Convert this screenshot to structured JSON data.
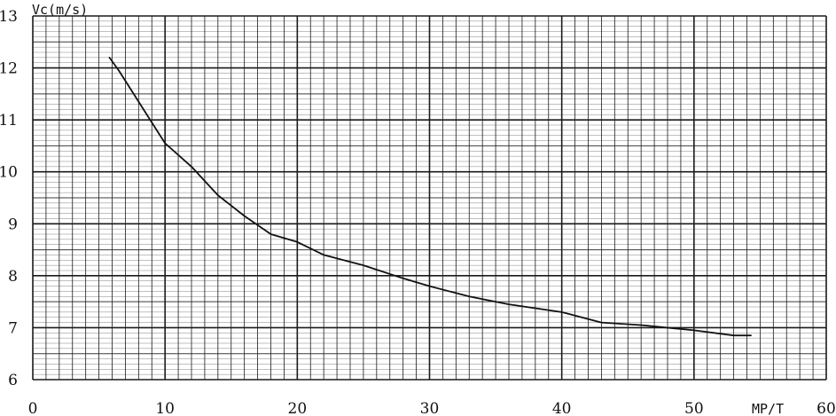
{
  "chart_data": {
    "type": "line",
    "ylabel": "Vc(m/s)",
    "xlabel": "MP/T",
    "xlim": [
      0,
      60
    ],
    "ylim": [
      6,
      13
    ],
    "x_ticks": [
      0,
      10,
      20,
      30,
      40,
      50,
      60
    ],
    "x_tick_labels": [
      "0",
      "10",
      "20",
      "30",
      "40",
      "50",
      "60"
    ],
    "y_ticks": [
      6,
      7,
      8,
      9,
      10,
      11,
      12,
      13
    ],
    "y_tick_labels": [
      "6",
      "7",
      "8",
      "9",
      "10",
      "11",
      "12",
      "13"
    ],
    "grid": true,
    "legend": "none",
    "colors": {
      "grid": "#1a1a1a",
      "line": "#111111",
      "background": "#ffffff"
    },
    "series": [
      {
        "x": [
          5.8,
          6.5,
          7.5,
          8.5,
          10,
          12,
          14,
          16,
          18,
          20,
          22,
          25,
          28,
          30,
          33,
          36,
          40,
          43,
          46,
          50,
          53,
          54.3
        ],
        "y": [
          12.2,
          11.95,
          11.55,
          11.15,
          10.55,
          10.1,
          9.55,
          9.15,
          8.8,
          8.65,
          8.4,
          8.2,
          7.95,
          7.8,
          7.6,
          7.45,
          7.3,
          7.1,
          7.05,
          6.95,
          6.85,
          6.85
        ]
      }
    ]
  }
}
